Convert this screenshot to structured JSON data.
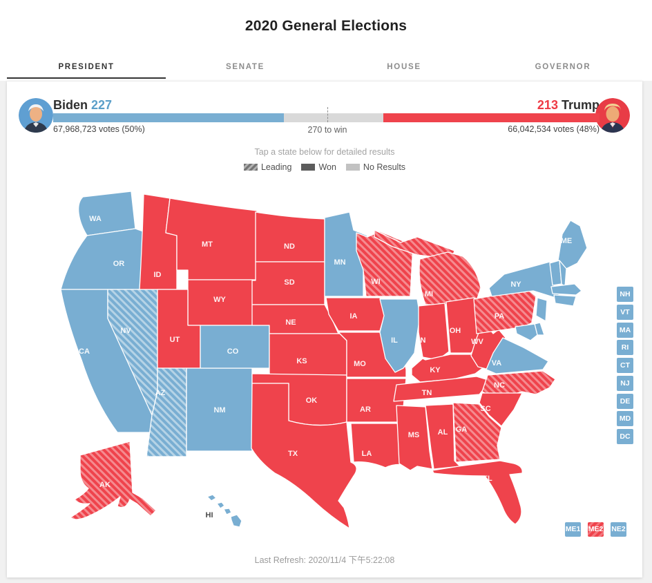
{
  "title": "2020 General Elections",
  "tabs": [
    {
      "label": "PRESIDENT",
      "active": true
    },
    {
      "label": "SENATE",
      "active": false
    },
    {
      "label": "HOUSE",
      "active": false
    },
    {
      "label": "GOVERNOR",
      "active": false
    }
  ],
  "scoreboard": {
    "biden": {
      "name": "Biden",
      "electoral": 227,
      "votes_label": "67,968,723 votes (50%)"
    },
    "trump": {
      "name": "Trump",
      "electoral": 213,
      "votes_label": "66,042,534 votes (48%)"
    },
    "total_electoral": 538,
    "threshold": 270,
    "threshold_label": "270 to win"
  },
  "map": {
    "hint": "Tap a state below for detailed results",
    "legend": [
      {
        "label": "Leading",
        "style": "leading"
      },
      {
        "label": "Won",
        "style": "won"
      },
      {
        "label": "No Results",
        "style": "none"
      }
    ],
    "states": [
      {
        "abbr": "WA",
        "result": "dem"
      },
      {
        "abbr": "OR",
        "result": "dem"
      },
      {
        "abbr": "CA",
        "result": "dem"
      },
      {
        "abbr": "NV",
        "result": "dem-lead"
      },
      {
        "abbr": "ID",
        "result": "rep"
      },
      {
        "abbr": "MT",
        "result": "rep"
      },
      {
        "abbr": "WY",
        "result": "rep"
      },
      {
        "abbr": "UT",
        "result": "rep"
      },
      {
        "abbr": "AZ",
        "result": "dem-lead"
      },
      {
        "abbr": "NM",
        "result": "dem"
      },
      {
        "abbr": "CO",
        "result": "dem"
      },
      {
        "abbr": "ND",
        "result": "rep"
      },
      {
        "abbr": "SD",
        "result": "rep"
      },
      {
        "abbr": "NE",
        "result": "rep"
      },
      {
        "abbr": "KS",
        "result": "rep"
      },
      {
        "abbr": "OK",
        "result": "rep"
      },
      {
        "abbr": "TX",
        "result": "rep"
      },
      {
        "abbr": "MN",
        "result": "dem"
      },
      {
        "abbr": "IA",
        "result": "rep"
      },
      {
        "abbr": "MO",
        "result": "rep"
      },
      {
        "abbr": "AR",
        "result": "rep"
      },
      {
        "abbr": "LA",
        "result": "rep"
      },
      {
        "abbr": "WI",
        "result": "rep-lead"
      },
      {
        "abbr": "IL",
        "result": "dem"
      },
      {
        "abbr": "MI_UP",
        "result": "rep-lead",
        "no_label": true
      },
      {
        "abbr": "MI",
        "result": "rep-lead"
      },
      {
        "abbr": "IN",
        "result": "rep"
      },
      {
        "abbr": "OH",
        "result": "rep"
      },
      {
        "abbr": "KY",
        "result": "rep"
      },
      {
        "abbr": "TN",
        "result": "rep"
      },
      {
        "abbr": "WV",
        "result": "rep"
      },
      {
        "abbr": "VA",
        "result": "dem"
      },
      {
        "abbr": "NC",
        "result": "rep-lead"
      },
      {
        "abbr": "SC",
        "result": "rep"
      },
      {
        "abbr": "GA",
        "result": "rep-lead"
      },
      {
        "abbr": "AL",
        "result": "rep"
      },
      {
        "abbr": "MS",
        "result": "rep"
      },
      {
        "abbr": "FL",
        "result": "rep"
      },
      {
        "abbr": "PA",
        "result": "rep-lead"
      },
      {
        "abbr": "NY",
        "result": "dem"
      },
      {
        "abbr": "ME",
        "result": "dem"
      },
      {
        "abbr": "VT",
        "result": "dem",
        "no_label": true
      },
      {
        "abbr": "NH",
        "result": "dem",
        "no_label": true
      },
      {
        "abbr": "MA",
        "result": "dem",
        "no_label": true
      },
      {
        "abbr": "CTRI",
        "result": "dem",
        "no_label": true
      },
      {
        "abbr": "NJ",
        "result": "dem",
        "no_label": true
      },
      {
        "abbr": "DE",
        "result": "dem",
        "no_label": true
      },
      {
        "abbr": "MD",
        "result": "dem",
        "no_label": true
      },
      {
        "abbr": "AK",
        "result": "rep-lead"
      },
      {
        "abbr": "HI",
        "result": "dem"
      }
    ],
    "small_states": [
      {
        "abbr": "NH",
        "result": "dem"
      },
      {
        "abbr": "VT",
        "result": "dem"
      },
      {
        "abbr": "MA",
        "result": "dem"
      },
      {
        "abbr": "RI",
        "result": "dem"
      },
      {
        "abbr": "CT",
        "result": "dem"
      },
      {
        "abbr": "NJ",
        "result": "dem"
      },
      {
        "abbr": "DE",
        "result": "dem"
      },
      {
        "abbr": "MD",
        "result": "dem"
      },
      {
        "abbr": "DC",
        "result": "dem"
      }
    ],
    "districts": [
      {
        "abbr": "ME1",
        "result": "dem"
      },
      {
        "abbr": "ME2",
        "result": "rep-lead"
      },
      {
        "abbr": "NE2",
        "result": "dem"
      }
    ]
  },
  "colors": {
    "dem": "#79AED2",
    "rep": "#EF434C",
    "dem_accent": "#5B9FC9",
    "rep_accent": "#EE3A44",
    "no_results": "#D9D9D9"
  },
  "footer": {
    "last_refresh": "Last Refresh: 2020/11/4 下午5:22:08"
  }
}
